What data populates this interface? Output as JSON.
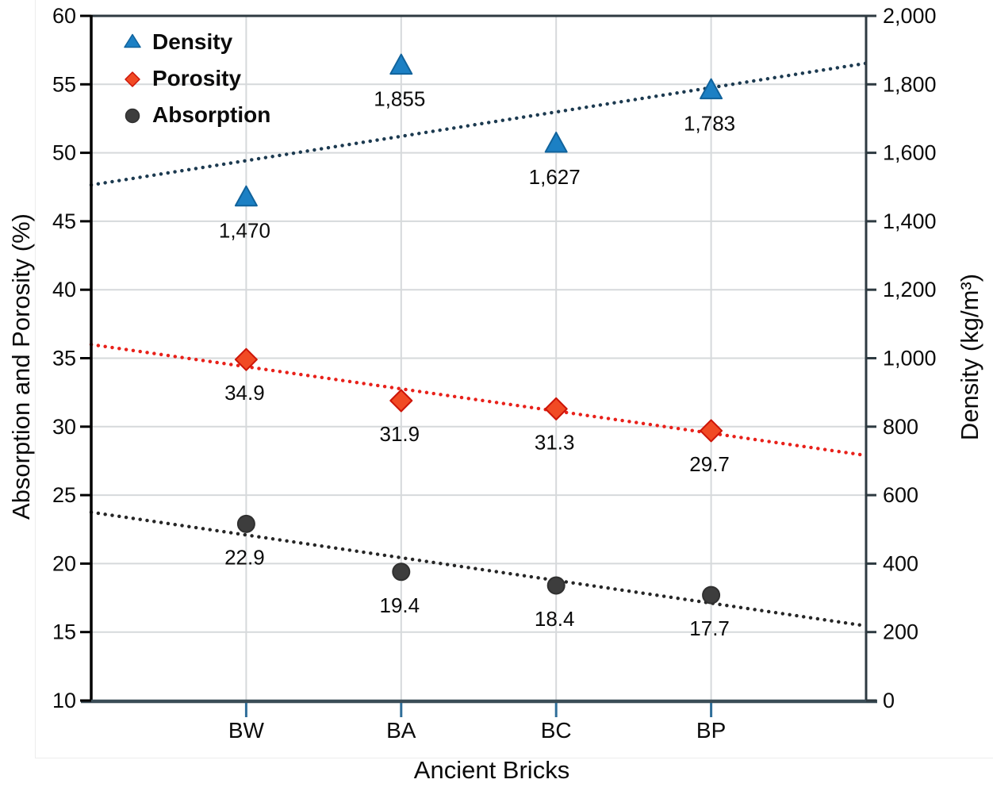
{
  "chart_data": {
    "type": "scatter",
    "title": "",
    "categories": [
      "BW",
      "BA",
      "BC",
      "BP"
    ],
    "x_axis": {
      "title": "Ancient Bricks"
    },
    "left_axis": {
      "title": "Absorption and Porosity (%)",
      "min": 10,
      "max": 60,
      "step": 5,
      "tick_labels": [
        "10",
        "15",
        "20",
        "25",
        "30",
        "35",
        "40",
        "45",
        "50",
        "55",
        "60"
      ]
    },
    "right_axis": {
      "title": "Density (kg/m³)",
      "min": 0,
      "max": 2000,
      "step": 200,
      "tick_labels": [
        "0",
        "200",
        "400",
        "600",
        "800",
        "1,000",
        "1,200",
        "1,400",
        "1,600",
        "1,800",
        "2,000"
      ]
    },
    "series": [
      {
        "name": "Density",
        "axis": "right",
        "marker": "triangle",
        "color": "#1c80c4",
        "edge": "#11639c",
        "trend_color": "#1c3a50",
        "values": [
          1470,
          1855,
          1627,
          1783
        ],
        "labels": [
          "1,470",
          "1,855",
          "1,627",
          "1,783"
        ]
      },
      {
        "name": "Porosity",
        "axis": "left",
        "marker": "diamond",
        "color": "#f14a24",
        "edge": "#cc1508",
        "trend_color": "#e8211a",
        "values": [
          34.9,
          31.9,
          31.3,
          29.7
        ],
        "labels": [
          "34.9",
          "31.9",
          "31.3",
          "29.7"
        ]
      },
      {
        "name": "Absorption",
        "axis": "left",
        "marker": "circle",
        "color": "#3d3d3d",
        "edge": "#303030",
        "trend_color": "#262626",
        "values": [
          22.9,
          19.4,
          18.4,
          17.7
        ],
        "labels": [
          "22.9",
          "19.4",
          "18.4",
          "17.7"
        ]
      }
    ],
    "legend": {
      "position": "top-left-inside",
      "items": [
        "Density",
        "Porosity",
        "Absorption"
      ]
    },
    "grid": true,
    "trendline": "linear dotted per series spanning full plot width"
  },
  "colors": {
    "background": "#ffffff",
    "grid": "#d6d9db",
    "frame": "#2e3a41",
    "left_axis_line": "#000000",
    "bottom_axis": "#3b4d57",
    "bottom_tick": "#2f6e99",
    "text": "#0b0b0b",
    "artifact_line": "#ededed"
  }
}
